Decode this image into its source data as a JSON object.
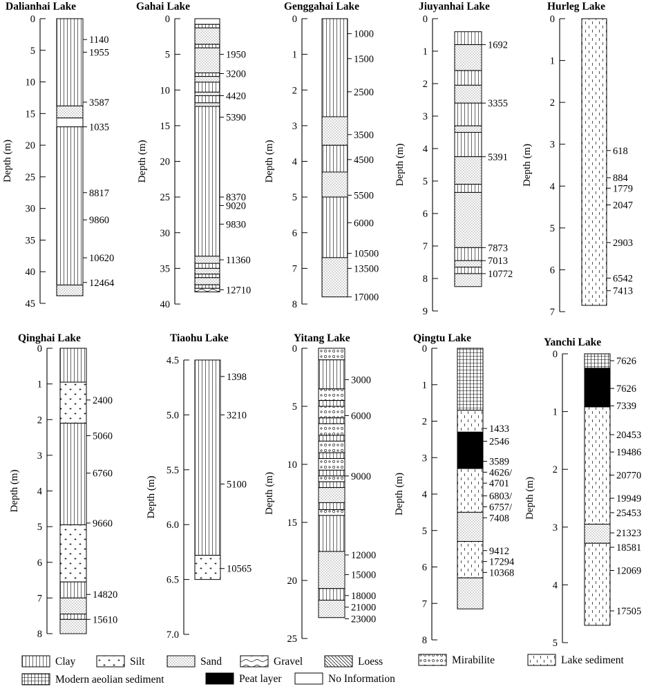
{
  "axis_label": "Depth (m)",
  "legend": [
    {
      "key": "clay",
      "label": "Clay"
    },
    {
      "key": "silt",
      "label": "Silt"
    },
    {
      "key": "sand",
      "label": "Sand"
    },
    {
      "key": "gravel",
      "label": "Gravel"
    },
    {
      "key": "loess",
      "label": "Loess"
    },
    {
      "key": "mirabilite",
      "label": "Mirabilite"
    },
    {
      "key": "lake",
      "label": "Lake sediment"
    },
    {
      "key": "aeolian",
      "label": "Modern aeolian sediment"
    },
    {
      "key": "peat",
      "label": "Peat layer"
    },
    {
      "key": "noinfo",
      "label": "No Information"
    }
  ],
  "cores": [
    {
      "name": "Dalianhai Lake",
      "ticks": [
        0,
        5,
        10,
        15,
        20,
        25,
        30,
        35,
        40,
        45
      ],
      "layers": [
        [
          "clay",
          0,
          13.8
        ],
        [
          "sand",
          13.8,
          15.7
        ],
        [
          "noinfo",
          15.7,
          17.1
        ],
        [
          "clay",
          17.1,
          42.1
        ],
        [
          "sand",
          42.1,
          43.8
        ]
      ],
      "ages": [
        {
          "label": "1140",
          "d": 3.3
        },
        {
          "label": "1955",
          "d": 5.3
        },
        {
          "label": "3587",
          "d": 13.2
        },
        {
          "label": "1035",
          "d": 17.1
        },
        {
          "label": "8817",
          "d": 27.5
        },
        {
          "label": "9860",
          "d": 31.8
        },
        {
          "label": "10620",
          "d": 37.8
        },
        {
          "label": "12464",
          "d": 41.7
        }
      ]
    },
    {
      "name": "Gahai Lake",
      "ticks": [
        0,
        5,
        10,
        15,
        20,
        25,
        30,
        35,
        40
      ],
      "layers": [
        [
          "noinfo",
          0,
          0.8
        ],
        [
          "clay",
          0.8,
          1.3
        ],
        [
          "sand",
          1.3,
          3.6
        ],
        [
          "clay",
          3.6,
          4.1
        ],
        [
          "sand",
          4.1,
          7.6
        ],
        [
          "clay",
          7.6,
          8.1
        ],
        [
          "sand",
          8.1,
          8.9
        ],
        [
          "clay",
          8.9,
          10.3
        ],
        [
          "sand",
          10.3,
          10.8
        ],
        [
          "clay",
          10.8,
          11.8
        ],
        [
          "sand",
          11.8,
          12.3
        ],
        [
          "clay",
          12.3,
          33.3
        ],
        [
          "sand",
          33.3,
          34.3
        ],
        [
          "clay",
          34.3,
          35.0
        ],
        [
          "sand",
          35.0,
          35.8
        ],
        [
          "clay",
          35.8,
          36.3
        ],
        [
          "sand",
          36.3,
          37.3
        ],
        [
          "clay",
          37.3,
          37.8
        ],
        [
          "gravel",
          37.8,
          38.3
        ]
      ],
      "ages": [
        {
          "label": "1950",
          "d": 5.0
        },
        {
          "label": "3200",
          "d": 7.7
        },
        {
          "label": "4420",
          "d": 10.8
        },
        {
          "label": "5390",
          "d": 13.8
        },
        {
          "label": "8370",
          "d": 25.0
        },
        {
          "label": "9020",
          "d": 26.2
        },
        {
          "label": "9830",
          "d": 28.8
        },
        {
          "label": "11360",
          "d": 33.8
        },
        {
          "label": "12710",
          "d": 38.0
        }
      ]
    },
    {
      "name": "Genggahai Lake",
      "ticks": [
        0,
        1,
        2,
        3,
        4,
        5,
        6,
        7,
        8
      ],
      "layers": [
        [
          "clay",
          0,
          2.75
        ],
        [
          "sand",
          2.75,
          3.55
        ],
        [
          "clay",
          3.55,
          4.3
        ],
        [
          "sand",
          4.3,
          5.0
        ],
        [
          "clay",
          5.0,
          6.7
        ],
        [
          "sand",
          6.7,
          7.8
        ]
      ],
      "ages": [
        {
          "label": "1000",
          "d": 0.42
        },
        {
          "label": "1500",
          "d": 1.12
        },
        {
          "label": "2500",
          "d": 2.05
        },
        {
          "label": "3500",
          "d": 3.25
        },
        {
          "label": "4500",
          "d": 3.95
        },
        {
          "label": "5500",
          "d": 4.95
        },
        {
          "label": "6000",
          "d": 5.72
        },
        {
          "label": "10500",
          "d": 6.58
        },
        {
          "label": "13500",
          "d": 7.0
        },
        {
          "label": "17000",
          "d": 7.8
        }
      ]
    },
    {
      "name": "Jiuyanhai Lake",
      "ticks": [
        0,
        1,
        2,
        3,
        4,
        5,
        6,
        7,
        8,
        9
      ],
      "layers": [
        [
          "clay",
          0.4,
          0.8
        ],
        [
          "sand",
          0.8,
          1.6
        ],
        [
          "clay",
          1.6,
          2.05
        ],
        [
          "sand",
          2.05,
          2.6
        ],
        [
          "clay",
          2.6,
          3.3
        ],
        [
          "sand",
          3.3,
          3.5
        ],
        [
          "clay",
          3.5,
          4.25
        ],
        [
          "sand",
          4.25,
          5.1
        ],
        [
          "clay",
          5.1,
          5.35
        ],
        [
          "sand",
          5.35,
          7.05
        ],
        [
          "clay",
          7.05,
          7.45
        ],
        [
          "sand",
          7.45,
          7.65
        ],
        [
          "clay",
          7.65,
          7.85
        ],
        [
          "sand",
          7.85,
          8.25
        ]
      ],
      "ages": [
        {
          "label": "1692",
          "d": 0.8
        },
        {
          "label": "3355",
          "d": 2.6
        },
        {
          "label": "5391",
          "d": 4.25
        },
        {
          "label": "7873",
          "d": 7.05
        },
        {
          "label": "7013",
          "d": 7.45
        },
        {
          "label": "10772",
          "d": 7.85
        }
      ]
    },
    {
      "name": "Hurleg Lake",
      "ticks": [
        0,
        1,
        2,
        3,
        4,
        5,
        6,
        7
      ],
      "layers": [
        [
          "lake",
          0,
          6.85
        ]
      ],
      "ages": [
        {
          "label": "618",
          "d": 3.15
        },
        {
          "label": "884",
          "d": 3.8
        },
        {
          "label": "1779",
          "d": 4.05
        },
        {
          "label": "2047",
          "d": 4.45
        },
        {
          "label": "2903",
          "d": 5.35
        },
        {
          "label": "6542",
          "d": 6.2
        },
        {
          "label": "7413",
          "d": 6.5
        }
      ]
    },
    {
      "name": "Qinghai Lake",
      "ticks": [
        0,
        1,
        2,
        3,
        4,
        5,
        6,
        7,
        8
      ],
      "layers": [
        [
          "clay",
          0,
          0.95
        ],
        [
          "silt",
          0.95,
          2.1
        ],
        [
          "clay",
          2.1,
          4.95
        ],
        [
          "silt",
          4.95,
          6.55
        ],
        [
          "clay",
          6.55,
          7.0
        ],
        [
          "sand",
          7.0,
          7.45
        ],
        [
          "clay",
          7.45,
          7.6
        ],
        [
          "sand",
          7.6,
          8.0
        ]
      ],
      "ages": [
        {
          "label": "2400",
          "d": 1.45
        },
        {
          "label": "5060",
          "d": 2.45
        },
        {
          "label": "6760",
          "d": 3.5
        },
        {
          "label": "9660",
          "d": 4.9
        },
        {
          "label": "14820",
          "d": 6.9
        },
        {
          "label": "15610",
          "d": 7.6
        }
      ]
    },
    {
      "name": "Tiaohu Lake",
      "ticks": [
        4.5,
        5.0,
        5.5,
        6.0,
        6.5,
        7.0
      ],
      "layers": [
        [
          "clay",
          4.5,
          6.28
        ],
        [
          "silt",
          6.28,
          6.5
        ]
      ],
      "ages": [
        {
          "label": "1398",
          "d": 4.65
        },
        {
          "label": "3210",
          "d": 5.0
        },
        {
          "label": "5100",
          "d": 5.63
        },
        {
          "label": "10565",
          "d": 6.4
        }
      ]
    },
    {
      "name": "Yitang Lake",
      "ticks": [
        0,
        5,
        10,
        15,
        20,
        25
      ],
      "layers": [
        [
          "mirabilite",
          0,
          1.0
        ],
        [
          "clay",
          1.0,
          3.5
        ],
        [
          "mirabilite",
          3.5,
          4.5
        ],
        [
          "clay",
          4.5,
          5.0
        ],
        [
          "mirabilite",
          5.0,
          6.0
        ],
        [
          "clay",
          6.0,
          6.5
        ],
        [
          "mirabilite",
          6.5,
          7.5
        ],
        [
          "clay",
          7.5,
          8.0
        ],
        [
          "mirabilite",
          8.0,
          9.0
        ],
        [
          "clay",
          9.0,
          9.5
        ],
        [
          "mirabilite",
          9.5,
          10.5
        ],
        [
          "clay",
          10.5,
          11.0
        ],
        [
          "mirabilite",
          11.0,
          11.5
        ],
        [
          "clay",
          11.5,
          12.0
        ],
        [
          "sand",
          12.0,
          13.3
        ],
        [
          "clay",
          13.3,
          13.9
        ],
        [
          "mirabilite",
          13.9,
          14.4
        ],
        [
          "clay",
          14.4,
          17.5
        ],
        [
          "sand",
          17.5,
          20.7
        ],
        [
          "clay",
          20.7,
          21.7
        ],
        [
          "sand",
          21.7,
          23.2
        ]
      ],
      "ages": [
        {
          "label": "3000",
          "d": 2.7
        },
        {
          "label": "6000",
          "d": 5.8
        },
        {
          "label": "9000",
          "d": 11.0
        },
        {
          "label": "12000",
          "d": 17.8
        },
        {
          "label": "15000",
          "d": 19.5
        },
        {
          "label": "18000",
          "d": 21.3
        },
        {
          "label": "21000",
          "d": 22.3
        },
        {
          "label": "23000",
          "d": 23.3
        }
      ]
    },
    {
      "name": "Qingtu Lake",
      "ticks": [
        0,
        1,
        2,
        3,
        4,
        5,
        6,
        7,
        8
      ],
      "layers": [
        [
          "aeolian",
          0,
          1.7
        ],
        [
          "lake",
          1.7,
          2.3
        ],
        [
          "peat",
          2.3,
          3.3
        ],
        [
          "lake",
          3.3,
          4.5
        ],
        [
          "sand",
          4.5,
          5.3
        ],
        [
          "lake",
          5.3,
          6.3
        ],
        [
          "sand",
          6.3,
          7.15
        ]
      ],
      "ages": [
        {
          "label": "1433",
          "d": 2.2
        },
        {
          "label": "2546",
          "d": 2.55
        },
        {
          "label": "3589",
          "d": 3.1
        },
        {
          "label": "4626/",
          "d": 3.4
        },
        {
          "label": "4701",
          "d": 3.7
        },
        {
          "label": "6803/",
          "d": 4.05
        },
        {
          "label": "6757/",
          "d": 4.35
        },
        {
          "label": "7408",
          "d": 4.65
        },
        {
          "label": "9412",
          "d": 5.55
        },
        {
          "label": "17294",
          "d": 5.85
        },
        {
          "label": "10368",
          "d": 6.15
        }
      ]
    },
    {
      "name": "Yanchi Lake",
      "ticks": [
        0,
        1,
        2,
        3,
        4,
        5
      ],
      "layers": [
        [
          "aeolian",
          0,
          0.25
        ],
        [
          "peat",
          0.25,
          0.92
        ],
        [
          "lake",
          0.92,
          2.95
        ],
        [
          "sand",
          2.95,
          3.28
        ],
        [
          "lake",
          3.28,
          4.7
        ]
      ],
      "ages": [
        {
          "label": "7626",
          "d": 0.12
        },
        {
          "label": "7626",
          "d": 0.6
        },
        {
          "label": "7339",
          "d": 0.9
        },
        {
          "label": "20453",
          "d": 1.4
        },
        {
          "label": "19486",
          "d": 1.7
        },
        {
          "label": "20770",
          "d": 2.1
        },
        {
          "label": "19949",
          "d": 2.5
        },
        {
          "label": "25453",
          "d": 2.75
        },
        {
          "label": "21323",
          "d": 3.1
        },
        {
          "label": "18581",
          "d": 3.35
        },
        {
          "label": "12069",
          "d": 3.75
        },
        {
          "label": "17505",
          "d": 4.45
        }
      ]
    }
  ]
}
